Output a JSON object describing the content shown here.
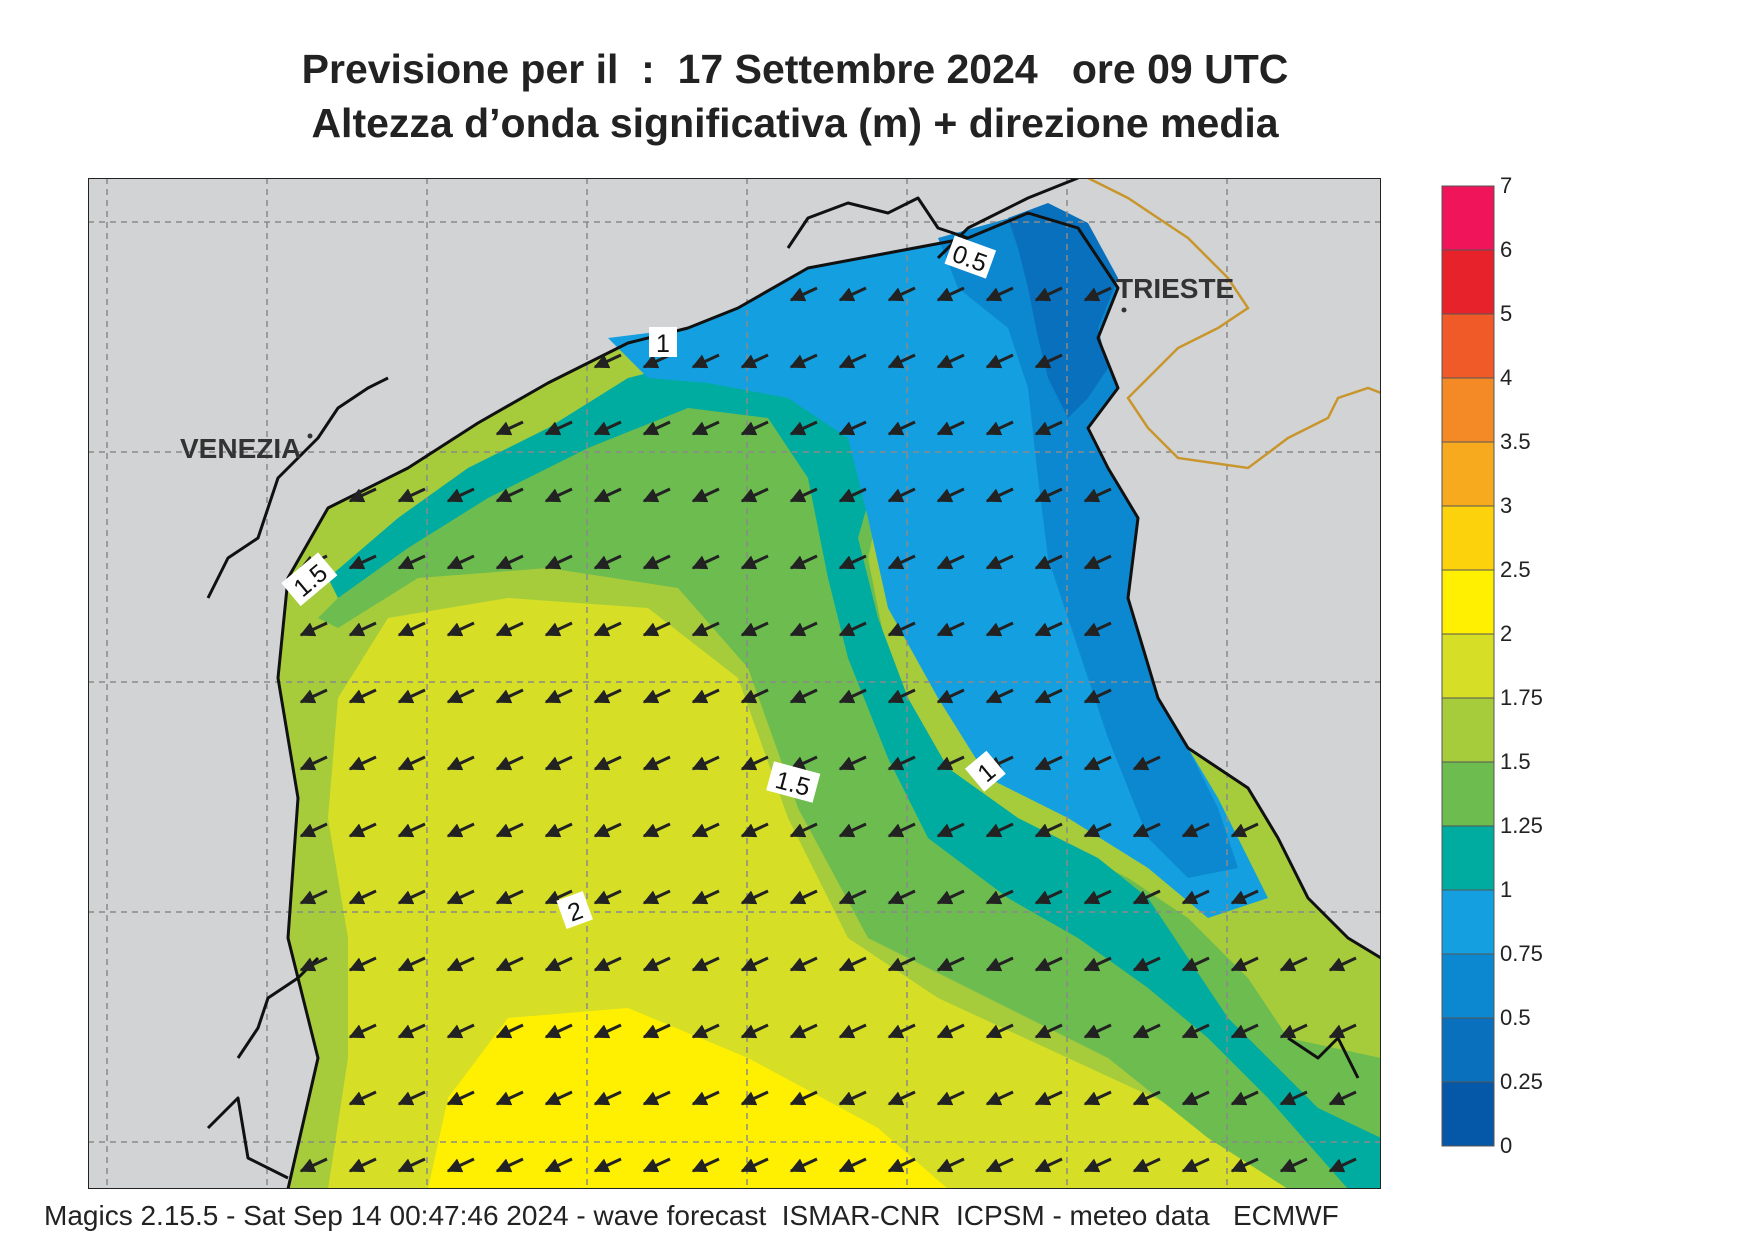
{
  "title": {
    "line1": "Previsione per il  :  17 Settembre 2024   ore 09 UTC",
    "line2": "Altezza d’onda significativa (m) + direzione media"
  },
  "places": {
    "venezia": "VENEZIA",
    "trieste": "TRIESTE"
  },
  "contour_labels": [
    "0.5",
    "1",
    "1.5",
    "1.5",
    "1",
    "2"
  ],
  "legend": {
    "ticks": [
      "7",
      "6",
      "5",
      "4",
      "3.5",
      "3",
      "2.5",
      "2",
      "1.75",
      "1.5",
      "1.25",
      "1",
      "0.75",
      "0.5",
      "0.25",
      "0"
    ],
    "colors": [
      "#f0145a",
      "#e8222a",
      "#f05a28",
      "#f48a26",
      "#f8aa1e",
      "#fcd20c",
      "#fef000",
      "#d6df26",
      "#a6cc3c",
      "#6cbc50",
      "#00aca0",
      "#14a0e0",
      "#0c88d0",
      "#0870bc",
      "#0558a8"
    ]
  },
  "wave_direction": "toward southwest",
  "colors": {
    "land": "#d2d3d5",
    "band_0_05": "#0870bc",
    "band_05_075": "#0c88d0",
    "band_075_1": "#14a0e0",
    "band_1_125": "#00aca0",
    "band_125_15": "#6cbc50",
    "band_15_175": "#a6cc3c",
    "band_175_2": "#d6df26",
    "band_2_25": "#fef000",
    "border": "#c8962c"
  },
  "footer": "Magics 2.15.5 - Sat Sep 14 00:47:46 2024 - wave forecast  ISMAR-CNR  ICPSM - meteo data   ECMWF"
}
